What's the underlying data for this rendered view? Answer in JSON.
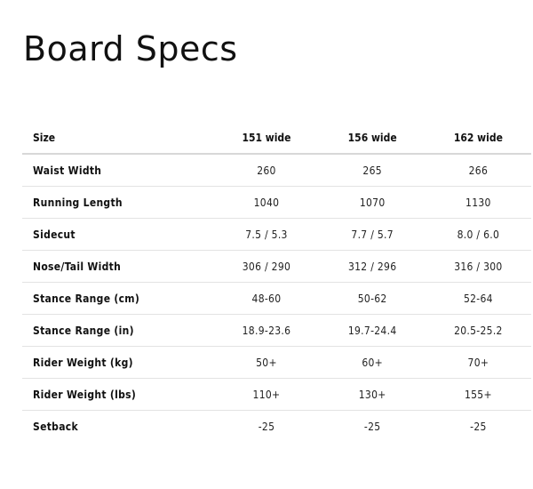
{
  "title": "Board Specs",
  "table": {
    "headers": [
      "Size",
      "151 wide",
      "156 wide",
      "162 wide"
    ],
    "rows": [
      [
        "Waist Width",
        "260",
        "265",
        "266"
      ],
      [
        "Running Length",
        "1040",
        "1070",
        "1130"
      ],
      [
        "Sidecut",
        "7.5 / 5.3",
        "7.7 / 5.7",
        "8.0 / 6.0"
      ],
      [
        "Nose/Tail Width",
        "306 / 290",
        "312 / 296",
        "316 / 300"
      ],
      [
        "Stance Range (cm)",
        "48-60",
        "50-62",
        "52-64"
      ],
      [
        "Stance Range (in)",
        "18.9-23.6",
        "19.7-24.4",
        "20.5-25.2"
      ],
      [
        "Rider Weight (kg)",
        "50+",
        "60+",
        "70+"
      ],
      [
        "Rider Weight (lbs)",
        "110+",
        "130+",
        "155+"
      ],
      [
        "Setback",
        "-25",
        "-25",
        "-25"
      ]
    ]
  }
}
